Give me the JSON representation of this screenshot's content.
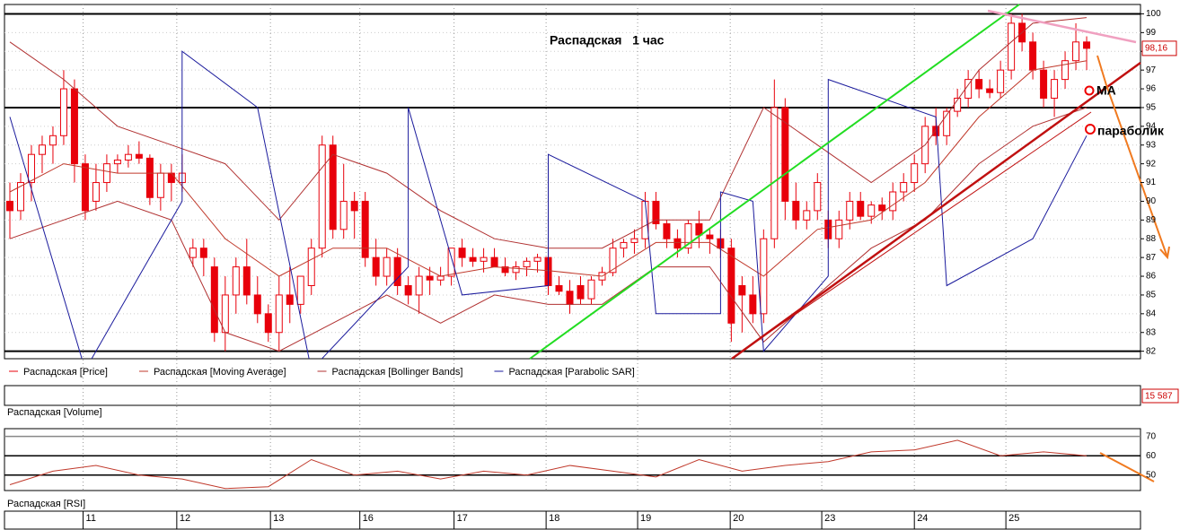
{
  "chart_data": [
    {
      "type": "candlestick",
      "title": "Распадская   1 час",
      "xlim": [
        -0.5,
        105
      ],
      "ylim": [
        81.6,
        100.5
      ],
      "yticks": [
        82,
        83,
        84,
        85,
        86,
        87,
        88,
        89,
        90,
        91,
        92,
        93,
        94,
        95,
        96,
        97,
        98,
        99,
        100
      ],
      "xticks": [
        {
          "value": 6.8,
          "label": "11"
        },
        {
          "value": 15.5,
          "label": "12"
        },
        {
          "value": 24.2,
          "label": "13"
        },
        {
          "value": 32.5,
          "label": "16"
        },
        {
          "value": 41.25,
          "label": "17"
        },
        {
          "value": 49.8,
          "label": "18"
        },
        {
          "value": 58.3,
          "label": "19"
        },
        {
          "value": 66.9,
          "label": "20"
        },
        {
          "value": 75.4,
          "label": "23"
        },
        {
          "value": 84,
          "label": "24"
        },
        {
          "value": 92.5,
          "label": "25"
        }
      ],
      "levels": [
        100,
        95,
        82
      ],
      "last_price": {
        "value": 98.16,
        "label": "98,16"
      },
      "annotations": [
        "МА",
        "параболик"
      ],
      "series": [
        {
          "name": "Распадская [Price]",
          "color": "#e8000b",
          "open": [
            90,
            89.5,
            91,
            92.5,
            93,
            93.5,
            96,
            92,
            90,
            91,
            92,
            92.2,
            92.5,
            92.3,
            90.2,
            91.5,
            91,
            87,
            87.5,
            86.5,
            83,
            85,
            86.5,
            85,
            84,
            83,
            85,
            84.5,
            85.5,
            87.5,
            93,
            88.5,
            90,
            90,
            87,
            86,
            87,
            85.5,
            85,
            86,
            85.8,
            86,
            87.5,
            87,
            86.8,
            87,
            86.5,
            86.2,
            86.5,
            86.8,
            87,
            85.5,
            85.2,
            85.5,
            84.8,
            85.8,
            86.2,
            87.5,
            87.8,
            88,
            90,
            88.8,
            88,
            87.5,
            88.8,
            88.2,
            88,
            87.5,
            85.5,
            85,
            84,
            88,
            95,
            90,
            89,
            89.5,
            89,
            88,
            89,
            90,
            89.2,
            89.8,
            89.5,
            90.5,
            91,
            92,
            94,
            93.5,
            94.8,
            95.5,
            96.5,
            96,
            95.8,
            97,
            99.5,
            98.5,
            97,
            95.5,
            96.5,
            97.5,
            98.5
          ],
          "high": [
            91,
            91.5,
            93,
            93.5,
            94,
            97,
            96.5,
            92.5,
            92,
            92.5,
            92.5,
            93,
            93.2,
            92.5,
            92,
            92,
            92.5,
            88,
            88,
            87,
            86,
            87,
            88,
            86,
            84.5,
            86,
            86.5,
            86,
            88,
            93.5,
            93.5,
            92,
            90.5,
            90.5,
            88,
            87.5,
            87.5,
            86,
            86.5,
            86.5,
            86.5,
            87.5,
            88,
            87.5,
            87.5,
            87.5,
            87,
            86.8,
            87,
            87.2,
            87.5,
            86,
            85.8,
            86,
            86,
            86.5,
            88,
            88,
            88.5,
            90.5,
            90.5,
            89,
            88.5,
            89,
            89.5,
            88.5,
            88.5,
            88,
            86,
            86,
            88.5,
            96.5,
            95.5,
            91,
            90,
            91.5,
            89.5,
            89.5,
            90.5,
            90.5,
            90,
            90.2,
            91,
            91.5,
            92.5,
            94.5,
            95,
            95,
            96,
            97,
            97,
            96.5,
            97.5,
            100,
            100,
            99,
            97.5,
            97,
            98,
            99.5,
            98.8
          ],
          "low": [
            88,
            89,
            90,
            91.5,
            92,
            93,
            91,
            89,
            89.5,
            90.5,
            91.5,
            91.8,
            92,
            89.8,
            89.5,
            90,
            90.5,
            86.5,
            86,
            82.5,
            82,
            84,
            84.5,
            83.5,
            82.5,
            82,
            83.5,
            84,
            85,
            87,
            88,
            88,
            88,
            86.5,
            85.5,
            85.5,
            85,
            84.5,
            84,
            85,
            85.5,
            85.5,
            86.5,
            86.5,
            86.2,
            86.5,
            86,
            85.8,
            86,
            86.2,
            85,
            85,
            84,
            84.5,
            84.5,
            85.5,
            86,
            87,
            87.2,
            87.5,
            88.5,
            87.5,
            87,
            87.2,
            87.5,
            87.2,
            87,
            82.5,
            83,
            83.5,
            83.5,
            87.5,
            89,
            88.5,
            88.5,
            89,
            87.5,
            87.5,
            88.5,
            89,
            88.8,
            89,
            89,
            90,
            90.5,
            91.5,
            93,
            93,
            94.5,
            95,
            95.5,
            95.5,
            95.5,
            96.5,
            98,
            96.5,
            95,
            94.5,
            96,
            97,
            97
          ],
          "close": [
            89.5,
            91,
            92.5,
            93,
            93.5,
            96,
            92,
            89.5,
            91,
            92,
            92.2,
            92.5,
            92.3,
            90.2,
            91.5,
            91,
            91.5,
            87.5,
            87,
            83,
            85,
            86.5,
            85,
            84,
            83,
            85,
            84.5,
            86,
            87.5,
            93,
            88.5,
            90,
            89.5,
            87,
            86,
            87,
            85.5,
            85,
            86,
            85.8,
            86,
            87.5,
            87,
            86.8,
            87,
            86.5,
            86.2,
            86.5,
            86.8,
            87,
            85.5,
            85.2,
            84.5,
            84.8,
            85.8,
            86.2,
            87.5,
            87.8,
            88,
            90,
            88.8,
            88,
            87.5,
            88.8,
            88.2,
            88,
            87.5,
            83.5,
            85,
            84,
            88,
            95,
            90,
            89,
            89.5,
            91,
            88,
            89,
            90,
            89.2,
            89.8,
            89.5,
            90.5,
            91,
            92,
            94,
            93.5,
            94.8,
            95.5,
            96.5,
            96,
            95.8,
            97,
            99.5,
            98.5,
            97,
            95.5,
            96.5,
            97.5,
            98.5,
            98.16
          ]
        },
        {
          "name": "Распадская [Moving Average]",
          "color": "#c0392b",
          "x": [
            0,
            5,
            10,
            15,
            20,
            25,
            30,
            35,
            40,
            45,
            50,
            55,
            60,
            65,
            70,
            75,
            80,
            85,
            90,
            95,
            100
          ],
          "values": [
            90.5,
            92,
            91.5,
            91.5,
            88,
            86,
            87.5,
            87.5,
            86,
            86.5,
            86.3,
            86,
            87.8,
            87.8,
            86,
            88.5,
            89,
            91,
            94.5,
            97,
            97.5
          ]
        },
        {
          "name": "Распадская [Bollinger Bands]",
          "color": "#b03030",
          "x": [
            0,
            5,
            10,
            15,
            20,
            25,
            30,
            35,
            40,
            45,
            50,
            55,
            60,
            65,
            70,
            75,
            80,
            85,
            90,
            95,
            100
          ],
          "values": [
            98.5,
            96.5,
            94,
            93,
            92,
            89,
            92.5,
            91.5,
            89.5,
            88,
            87.5,
            87.5,
            89,
            89,
            95,
            93,
            91,
            93,
            97,
            99.5,
            99.8
          ],
          "lower": [
            88,
            89,
            90,
            89,
            83,
            82,
            83.5,
            85,
            83.5,
            85,
            84.5,
            84.5,
            86.5,
            86.5,
            82.5,
            85,
            87.5,
            89,
            92,
            94,
            95
          ]
        },
        {
          "name": "Распадская [Parabolic SAR]",
          "color": "#1a1a9c",
          "x": [
            0,
            7,
            16,
            16,
            23,
            28,
            37,
            37,
            42,
            50,
            50,
            59,
            60,
            66,
            66,
            69,
            70,
            76,
            76,
            86,
            87,
            95,
            100
          ],
          "values": [
            94.5,
            81,
            90,
            98,
            95,
            81,
            86.5,
            95,
            85,
            85.5,
            92.5,
            90,
            84,
            84,
            90.5,
            90,
            82,
            86,
            96.5,
            94.5,
            85.5,
            88,
            93.5
          ]
        }
      ]
    },
    {
      "type": "line",
      "xlim": [
        -0.5,
        105
      ],
      "ylim": [
        42,
        74
      ],
      "yticks": [
        50,
        60,
        70
      ],
      "series": [
        {
          "name": "Распадская [RSI]",
          "color": "#c0392b",
          "x": [
            0,
            4,
            8,
            12,
            16,
            20,
            24,
            28,
            32,
            36,
            40,
            44,
            48,
            52,
            56,
            60,
            64,
            68,
            72,
            76,
            80,
            84,
            88,
            92,
            96,
            100
          ],
          "values": [
            45,
            52,
            55,
            50,
            48,
            43,
            44,
            58,
            50,
            52,
            48,
            52,
            50,
            55,
            52,
            49,
            58,
            52,
            55,
            57,
            62,
            63,
            68,
            60,
            62,
            60
          ]
        }
      ]
    }
  ],
  "volume": {
    "name": "Распадская [Volume]",
    "last": {
      "value": 15587,
      "label": "15 587"
    }
  }
}
